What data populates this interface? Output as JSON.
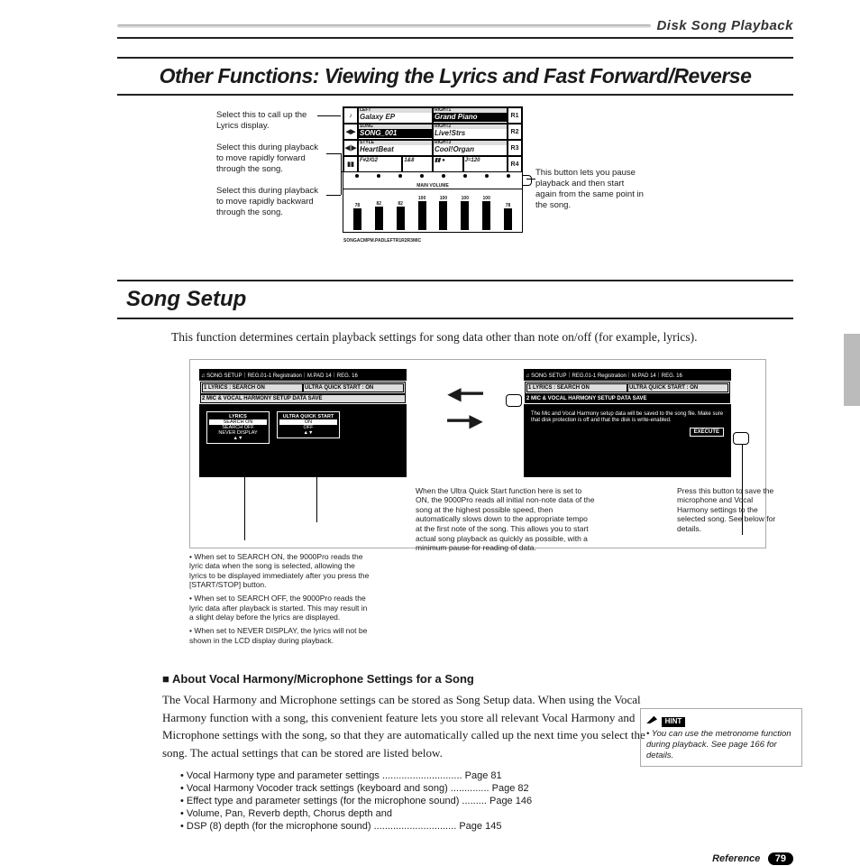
{
  "chapter": "Disk Song Playback",
  "title_main": "Other Functions: Viewing the Lyrics and Fast Forward/Reverse",
  "title_section": "Song Setup",
  "callouts_top": {
    "lyrics": "Select this to call up the Lyrics display.",
    "ff": "Select this during playback to move rapidly forward through the song.",
    "rew": "Select this during playback to move rapidly backward through the song.",
    "pause": "This button lets you pause playback and then start again from the same point in the song."
  },
  "lcd": {
    "r1_left_lab": "LEFT",
    "r1_left_val": "Galaxy EP",
    "r1_right_lab": "RIGHT1",
    "r1_right_val": "Grand Piano",
    "r2_left_lab": "SONG",
    "r2_left_val": "SONG_001",
    "r2_right_lab": "RIGHT2",
    "r2_right_val": "Live!Strs",
    "r3_left_lab": "STYLE",
    "r3_left_cancel": "CANCEL",
    "r3_left_val": "HeartBeat",
    "r3_right_lab": "RIGHT3",
    "r3_right_val": "Cool!Organ",
    "r4_a": "F#2/G2",
    "r4_b": "1&8",
    "r4_c": "",
    "r4_tempo": "J=120",
    "mainvol": "MAIN VOLUME",
    "vol_vals": [
      "78",
      "82",
      "82",
      "100",
      "100",
      "100",
      "100",
      "78"
    ],
    "vol_heights": [
      24,
      26,
      26,
      32,
      32,
      32,
      32,
      24
    ],
    "vol_labs": [
      "SONG",
      "ACMP",
      "M.PAD",
      "LEFT",
      "R1",
      "R2",
      "R3",
      "MIC"
    ],
    "sideL": [
      "A",
      "B",
      "C",
      "D"
    ],
    "sideR": [
      "R1",
      "R2",
      "R3",
      "R4"
    ]
  },
  "intro": "This function determines certain playback settings for song data other than note on/off (for example, lyrics).",
  "setup_screen": {
    "header": "♫ SONG SETUP｜REG.01-1 Registration｜M.PAD 14｜REG. 16",
    "row1_a": "1 LYRICS : SEARCH ON",
    "row1_b": "ULTRA QUICK START : ON",
    "row2": "2 MIC & VOCAL HARMONY SETUP DATA SAVE",
    "panelL_title": "LYRICS",
    "panelL_opts": [
      "SEARCH ON",
      "SEARCH OFF",
      "NEVER DISPLAY"
    ],
    "panelR_title": "ULTRA QUICK START",
    "panelR_opts": [
      "ON",
      "OFF"
    ],
    "msg": "The Mic and Vocal Harmony setup data will be saved to the song file. Make sure that disk protection is off and that the disk is write-enabled.",
    "exec": "EXECUTE"
  },
  "notes_left": [
    "• When set to SEARCH ON, the 9000Pro reads the lyric data when the song is selected, allowing the lyrics to be displayed immediately after you press the [START/STOP] button.",
    "• When set to SEARCH OFF, the 9000Pro reads the lyric data after playback is started.  This may result in a slight delay before the lyrics are displayed.",
    "• When set to NEVER DISPLAY, the lyrics will not be shown in the LCD display during playback."
  ],
  "notes_mid": "When the Ultra Quick Start function here is set to ON, the 9000Pro reads all initial non-note data of the song at the highest possible speed, then automatically slows down to the appropriate tempo at the first note of the song.  This allows you to start actual song playback as quickly as possible, with a minimum pause for reading of data.",
  "notes_right": "Press this button to save the microphone and Vocal Harmony settings to the selected song. See below for details.",
  "sub_heading": "■ About Vocal Harmony/Microphone Settings for a Song",
  "sub_para": "The Vocal Harmony and Microphone settings can be stored as Song Setup data.  When using the Vocal Harmony function with a song, this convenient feature lets you store all relevant Vocal Harmony and Microphone settings with the song, so that they are automatically called up the next time you select the song.  The actual settings that can be stored are listed below.",
  "ref_list": [
    {
      "t": "Vocal Harmony type and parameter settings",
      "p": "Page 81"
    },
    {
      "t": "Vocal Harmony Vocoder track settings (keyboard and song)",
      "p": "Page 82"
    },
    {
      "t": "Effect type and parameter settings (for the microphone sound)",
      "p": "Page 146"
    },
    {
      "t": "Volume, Pan, Reverb depth, Chorus depth and",
      "p": ""
    },
    {
      "t": "DSP (8) depth (for the microphone sound)",
      "p": "Page 145"
    }
  ],
  "hint_label": "HINT",
  "hint_text": "You can use the metronome function during playback. See page 166 for details.",
  "foot_label": "Reference",
  "page_no": "79"
}
